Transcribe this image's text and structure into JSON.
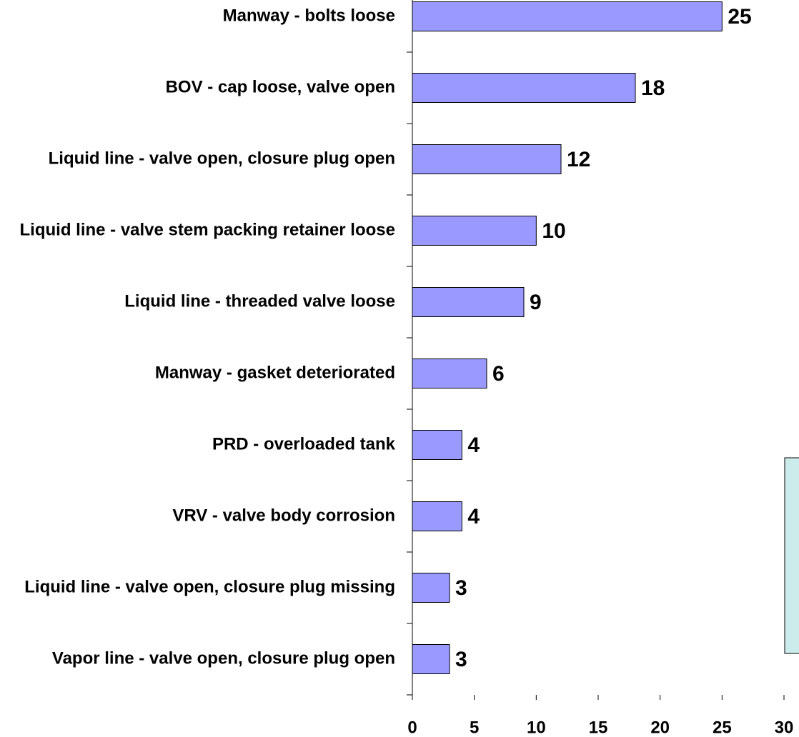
{
  "chart_data": {
    "type": "barh",
    "categories": [
      "Manway - bolts loose",
      "BOV - cap loose, valve open",
      "Liquid line - valve open, closure plug open",
      "Liquid line - valve stem packing retainer loose",
      "Liquid line - threaded valve loose",
      "Manway - gasket deteriorated",
      "PRD - overloaded tank",
      "VRV - valve body corrosion",
      "Liquid line - valve open, closure plug missing",
      "Vapor line - valve open, closure plug open"
    ],
    "values": [
      25,
      18,
      12,
      10,
      9,
      6,
      4,
      4,
      3,
      3
    ],
    "color": "#9999ff",
    "xlim": [
      0,
      30
    ],
    "xticks": [
      0,
      5,
      10,
      15,
      20,
      25,
      30
    ]
  }
}
